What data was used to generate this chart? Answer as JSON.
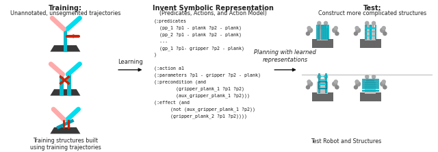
{
  "background_color": "#ffffff",
  "fig_width": 6.4,
  "fig_height": 2.22,
  "dpi": 100,
  "title_training": "Training:",
  "subtitle_training": "Unannotated, unsegmented trajectories",
  "title_middle": "Invent Symbolic Representation",
  "subtitle_middle": "(Predicates, Actions, and Action Model)",
  "title_test": "Test:",
  "subtitle_test": "Construct more complicated structures",
  "learning_label": "Learning",
  "planning_label": "Planning with learned\nrepresentations",
  "code_lines": [
    "(:predicates",
    "  (pp_1 ?p1 - plank ?p2 - plank)",
    "  (pp_2 ?p1 - plank ?p2 - plank)",
    "  ...",
    "  (gp_1 ?p1- gripper ?p2 - plank)",
    ")",
    "",
    "(:action a1",
    "(:parameters ?p1 - gripper ?p2 - plank)",
    "(:precondition (and",
    "        (gripper_plank_1 ?p1 ?p2)",
    "        (aux_gripper_plank_1 ?p2)))",
    "(:effect (and",
    "      (not (aux_gripper_plank_1 ?p2))",
    "      (gripper_plank_2 ?p1 ?p2))))"
  ],
  "caption_left": "Training structures built\nusing training trajectories",
  "caption_right": "Test Robot and Structures",
  "title_fontsize": 7.0,
  "subtitle_fontsize": 5.8,
  "code_fontsize": 4.8,
  "arrow_label_fontsize": 6.0,
  "caption_fontsize": 5.8,
  "text_color": "#222222",
  "code_color": "#111111",
  "arrow_color": "#111111",
  "cyan_color": "#00ccdd",
  "pink_color": "#ffaaaa",
  "red_color": "#cc2200",
  "dark_gray": "#444444",
  "mid_gray": "#888888",
  "light_gray": "#cccccc",
  "plank_dark": "#555555"
}
